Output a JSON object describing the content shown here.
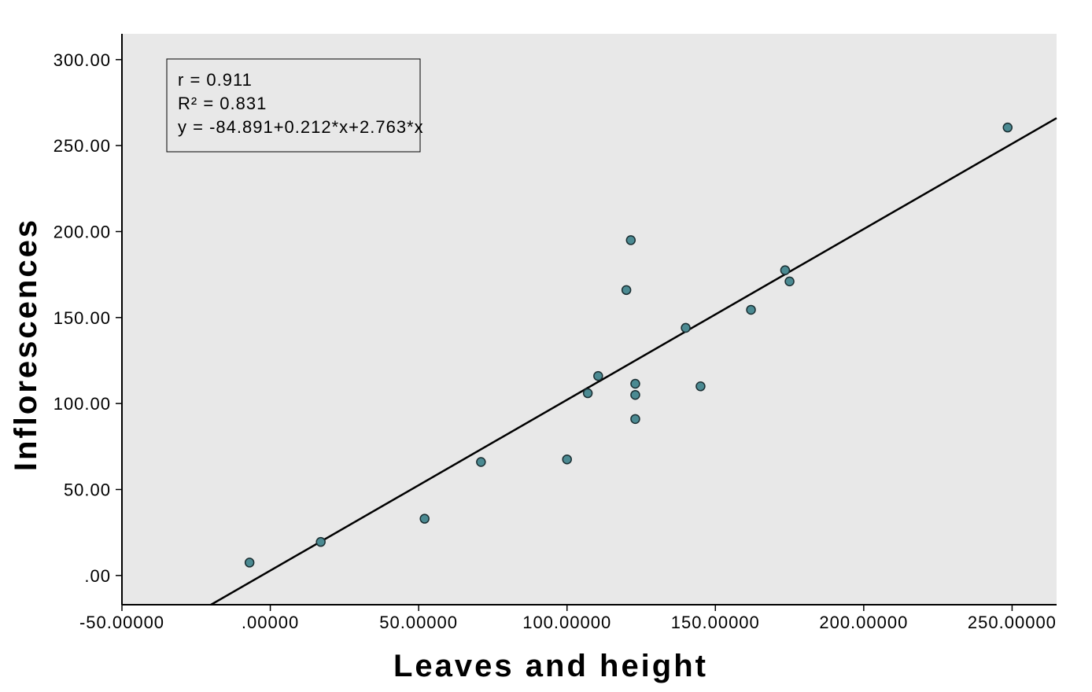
{
  "chart_data": {
    "type": "scatter",
    "xlabel": "Leaves and height",
    "ylabel": "Inflorescences",
    "xlim": [
      -50,
      265
    ],
    "ylim": [
      -17,
      315
    ],
    "x_ticks": [
      -50,
      0,
      50,
      100,
      150,
      200,
      250
    ],
    "x_tick_labels": [
      "-50.00000",
      ".00000",
      "50.00000",
      "100.00000",
      "150.00000",
      "200.00000",
      "250.00000"
    ],
    "y_ticks": [
      0,
      50,
      100,
      150,
      200,
      250,
      300
    ],
    "y_tick_labels": [
      ".00",
      "50.00",
      "100.00",
      "150.00",
      "200.00",
      "250.00",
      "300.00"
    ],
    "grid": false,
    "background_color": "#e8e8e8",
    "marker_color": "#4b8a92",
    "line_color": "#000000",
    "points": [
      {
        "x": -7,
        "y": 7.5
      },
      {
        "x": 17,
        "y": 19.5
      },
      {
        "x": 52,
        "y": 33
      },
      {
        "x": 71,
        "y": 66
      },
      {
        "x": 100,
        "y": 67.5
      },
      {
        "x": 107,
        "y": 106
      },
      {
        "x": 110.5,
        "y": 116
      },
      {
        "x": 120,
        "y": 166
      },
      {
        "x": 121.5,
        "y": 195
      },
      {
        "x": 123,
        "y": 111.5
      },
      {
        "x": 123,
        "y": 105
      },
      {
        "x": 123,
        "y": 91
      },
      {
        "x": 140,
        "y": 144
      },
      {
        "x": 145,
        "y": 110
      },
      {
        "x": 162,
        "y": 154.5
      },
      {
        "x": 173.5,
        "y": 177.5
      },
      {
        "x": 175,
        "y": 171
      },
      {
        "x": 248.5,
        "y": 260.5
      }
    ],
    "fit_line": {
      "x1": -20,
      "y1": -17,
      "x2": 265,
      "y2": 266
    },
    "annotation": {
      "lines": [
        "r = 0.911",
        "R² = 0.831",
        "y = -84.891+0.212*x+2.763*x"
      ],
      "position": "top-left"
    }
  }
}
